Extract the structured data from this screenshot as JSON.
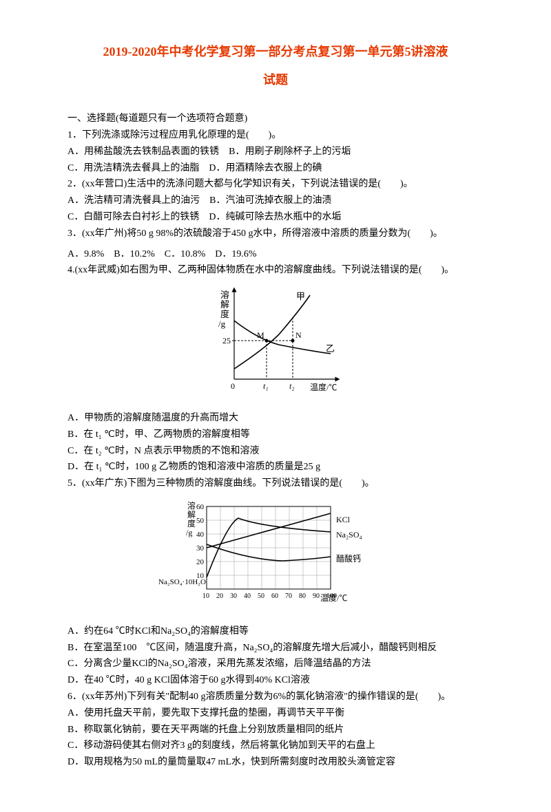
{
  "title_line1": "2019-2020年中考化学复习第一部分考点复习第一单元第5讲溶液",
  "title_line2": "试题",
  "section_heading": "一、选择题(每道题只有一个选项符合题意)",
  "q1": {
    "stem": "1．下列洗涤或除污过程应用乳化原理的是(　　)。",
    "a": "A．用稀盐酸洗去铁制品表面的铁锈　B．用刷子刷除杯子上的污垢",
    "c": "C．用洗洁精洗去餐具上的油脂　D．用酒精除去衣服上的碘"
  },
  "q2": {
    "stem": "2．(xx年营口)生活中的洗涤问题大都与化学知识有关，下列说法错误的是(　　)。",
    "a": "A．洗洁精可清洗餐具上的油污　B．汽油可洗掉衣服上的油渍",
    "c": "C．白醋可除去白衬衫上的铁锈　D．纯碱可除去热水瓶中的水垢"
  },
  "q3": {
    "stem": "3．(xx年广州)将50 g 98%的浓硫酸溶于450 g水中，所得溶液中溶质的质量分数为(　　)。",
    "opts": "A．9.8%　B．10.2%　C．10.8%　D．19.6%"
  },
  "q4": {
    "stem": "4.(xx年武威)如右图为甲、乙两种固体物质在水中的溶解度曲线。下列说法错误的是(　　)。",
    "a": "A．甲物质的溶解度随温度的升高而增大",
    "b": "B．在 t₁ ℃时，甲、乙两物质的溶解度相等",
    "c": "C．在 t₂ ℃时，N 点表示甲物质的不饱和溶液",
    "d": "D．在 t₁ ℃时，100 g 乙物质的饱和溶液中溶质的质量是25 g"
  },
  "q5": {
    "stem": "5．(xx年广东)下图为三种物质的溶解度曲线。下列说法错误的是(　　)。",
    "a": "A．约在64 ℃时KCl和Na₂SO₄的溶解度相等",
    "b": "B．在室温至100　℃区间，随温度升高，Na₂SO₄的溶解度先增大后减小，醋酸钙则相反",
    "c": "C．分离含少量KCl的Na₂SO₄溶液，采用先蒸发浓缩，后降温结晶的方法",
    "d": "D．在40 ℃时，40 g KCl固体溶于60 g水得到40% KCl溶液"
  },
  "q6": {
    "stem": "6．(xx年苏州)下列有关\"配制40 g溶质质量分数为6%的氯化钠溶液\"的操作错误的是(　　)。",
    "a": "A．使用托盘天平前，要先取下支撑托盘的垫圈，再调节天平平衡",
    "b": "B．称取氯化钠前，要在天平两端的托盘上分别放质量相同的纸片",
    "c": "C．移动游码使其右侧对齐3 g的刻度线，然后将氯化钠加到天平的右盘上",
    "d": "D．取用规格为50 mL的量筒量取47 mL水，快到所需刻度时改用胶头滴管定容"
  },
  "fig1": {
    "ylabel1": "溶",
    "ylabel2": "解",
    "ylabel3": "度",
    "yunit": "/g",
    "yval": "25",
    "label_jia": "甲",
    "label_yi": "乙",
    "label_M": "M",
    "label_N": "N",
    "xtick0": "0",
    "xtick1": "t₁",
    "xtick2": "t₂",
    "xlabel": "温度/℃",
    "axis_color": "#000",
    "curve_color": "#000",
    "grid_dash": "3,2"
  },
  "fig2": {
    "ylabel1": "溶",
    "ylabel2": "解",
    "ylabel3": "度",
    "yunit": "/g",
    "yticks": [
      "60",
      "50",
      "40",
      "30",
      "20",
      "10"
    ],
    "xticks": [
      "10",
      "20",
      "30",
      "40",
      "50",
      "60",
      "70",
      "80",
      "90",
      "100"
    ],
    "xlabel": "温度/℃",
    "series_kcl": "KCl",
    "series_na2so4": "Na₂SO₄",
    "series_acetate": "醋酸钙",
    "label_na2so4_10h2o": "Na₂SO₄·10H₂O",
    "axis_color": "#000",
    "grid_color": "#888"
  }
}
